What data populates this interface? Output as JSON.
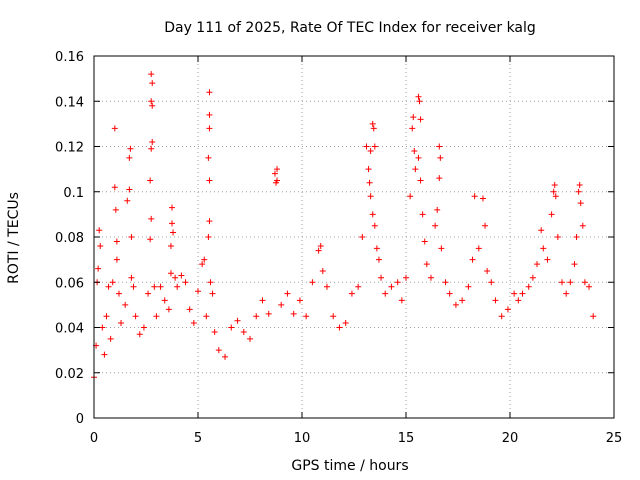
{
  "chart_data": {
    "type": "scatter",
    "title": "Day 111 of 2025, Rate Of TEC Index for receiver kalg",
    "xlabel": "GPS time / hours",
    "ylabel": "ROTI / TECUs",
    "xlim": [
      0,
      25
    ],
    "ylim": [
      0,
      0.16
    ],
    "x_ticks": [
      0,
      5,
      10,
      15,
      20,
      25
    ],
    "x_tick_labels": [
      "0",
      "5",
      "10",
      "15",
      "20",
      "25"
    ],
    "y_ticks": [
      0,
      0.02,
      0.04,
      0.06,
      0.08,
      0.1,
      0.12,
      0.14,
      0.16
    ],
    "y_tick_labels": [
      "0",
      "0.02",
      "0.04",
      "0.06",
      "0.08",
      "0.1",
      "0.12",
      "0.14",
      "0.16"
    ],
    "grid": true,
    "marker": "+",
    "color": "#ff0000",
    "points": [
      [
        0.0,
        0.018
      ],
      [
        0.1,
        0.032
      ],
      [
        0.15,
        0.06
      ],
      [
        0.2,
        0.066
      ],
      [
        0.25,
        0.083
      ],
      [
        0.3,
        0.076
      ],
      [
        0.4,
        0.04
      ],
      [
        0.5,
        0.028
      ],
      [
        0.6,
        0.045
      ],
      [
        0.7,
        0.058
      ],
      [
        0.8,
        0.035
      ],
      [
        0.9,
        0.06
      ],
      [
        1.0,
        0.128
      ],
      [
        1.0,
        0.102
      ],
      [
        1.05,
        0.092
      ],
      [
        1.1,
        0.078
      ],
      [
        1.1,
        0.07
      ],
      [
        1.2,
        0.055
      ],
      [
        1.3,
        0.042
      ],
      [
        1.5,
        0.05
      ],
      [
        1.6,
        0.096
      ],
      [
        1.7,
        0.115
      ],
      [
        1.75,
        0.119
      ],
      [
        1.7,
        0.101
      ],
      [
        1.8,
        0.08
      ],
      [
        1.8,
        0.062
      ],
      [
        1.9,
        0.058
      ],
      [
        2.0,
        0.045
      ],
      [
        2.2,
        0.037
      ],
      [
        2.4,
        0.04
      ],
      [
        2.6,
        0.055
      ],
      [
        2.75,
        0.152
      ],
      [
        2.8,
        0.148
      ],
      [
        2.75,
        0.14
      ],
      [
        2.8,
        0.138
      ],
      [
        2.8,
        0.122
      ],
      [
        2.75,
        0.119
      ],
      [
        2.7,
        0.105
      ],
      [
        2.75,
        0.088
      ],
      [
        2.7,
        0.079
      ],
      [
        2.9,
        0.058
      ],
      [
        3.0,
        0.045
      ],
      [
        3.2,
        0.058
      ],
      [
        3.4,
        0.052
      ],
      [
        3.6,
        0.048
      ],
      [
        3.7,
        0.064
      ],
      [
        3.75,
        0.093
      ],
      [
        3.75,
        0.086
      ],
      [
        3.8,
        0.082
      ],
      [
        3.7,
        0.076
      ],
      [
        3.9,
        0.062
      ],
      [
        4.0,
        0.058
      ],
      [
        4.2,
        0.063
      ],
      [
        4.4,
        0.06
      ],
      [
        4.6,
        0.048
      ],
      [
        4.8,
        0.042
      ],
      [
        5.0,
        0.056
      ],
      [
        5.2,
        0.068
      ],
      [
        5.3,
        0.07
      ],
      [
        5.4,
        0.045
      ],
      [
        5.55,
        0.144
      ],
      [
        5.55,
        0.134
      ],
      [
        5.55,
        0.128
      ],
      [
        5.5,
        0.115
      ],
      [
        5.55,
        0.105
      ],
      [
        5.55,
        0.087
      ],
      [
        5.5,
        0.08
      ],
      [
        5.6,
        0.06
      ],
      [
        5.7,
        0.055
      ],
      [
        5.8,
        0.038
      ],
      [
        6.0,
        0.03
      ],
      [
        6.3,
        0.027
      ],
      [
        6.6,
        0.04
      ],
      [
        6.9,
        0.043
      ],
      [
        7.2,
        0.038
      ],
      [
        7.5,
        0.035
      ],
      [
        7.8,
        0.045
      ],
      [
        8.1,
        0.052
      ],
      [
        8.4,
        0.046
      ],
      [
        8.7,
        0.108
      ],
      [
        8.75,
        0.104
      ],
      [
        8.8,
        0.11
      ],
      [
        8.8,
        0.105
      ],
      [
        9.0,
        0.05
      ],
      [
        9.3,
        0.055
      ],
      [
        9.6,
        0.046
      ],
      [
        9.9,
        0.052
      ],
      [
        10.2,
        0.045
      ],
      [
        10.5,
        0.06
      ],
      [
        10.8,
        0.074
      ],
      [
        10.9,
        0.076
      ],
      [
        11.0,
        0.065
      ],
      [
        11.2,
        0.058
      ],
      [
        11.5,
        0.045
      ],
      [
        11.8,
        0.04
      ],
      [
        12.1,
        0.042
      ],
      [
        12.4,
        0.055
      ],
      [
        12.7,
        0.058
      ],
      [
        12.9,
        0.08
      ],
      [
        13.1,
        0.12
      ],
      [
        13.2,
        0.11
      ],
      [
        13.25,
        0.104
      ],
      [
        13.3,
        0.118
      ],
      [
        13.4,
        0.13
      ],
      [
        13.45,
        0.128
      ],
      [
        13.5,
        0.12
      ],
      [
        13.3,
        0.098
      ],
      [
        13.4,
        0.09
      ],
      [
        13.5,
        0.085
      ],
      [
        13.6,
        0.075
      ],
      [
        13.7,
        0.07
      ],
      [
        13.8,
        0.062
      ],
      [
        14.0,
        0.055
      ],
      [
        14.3,
        0.058
      ],
      [
        14.6,
        0.06
      ],
      [
        14.8,
        0.052
      ],
      [
        15.0,
        0.062
      ],
      [
        15.2,
        0.098
      ],
      [
        15.3,
        0.128
      ],
      [
        15.35,
        0.133
      ],
      [
        15.4,
        0.118
      ],
      [
        15.45,
        0.11
      ],
      [
        15.6,
        0.142
      ],
      [
        15.65,
        0.14
      ],
      [
        15.7,
        0.132
      ],
      [
        15.6,
        0.115
      ],
      [
        15.7,
        0.105
      ],
      [
        15.8,
        0.09
      ],
      [
        15.9,
        0.078
      ],
      [
        16.0,
        0.068
      ],
      [
        16.2,
        0.062
      ],
      [
        16.4,
        0.085
      ],
      [
        16.5,
        0.092
      ],
      [
        16.6,
        0.12
      ],
      [
        16.65,
        0.115
      ],
      [
        16.6,
        0.106
      ],
      [
        16.7,
        0.075
      ],
      [
        16.9,
        0.06
      ],
      [
        17.1,
        0.055
      ],
      [
        17.4,
        0.05
      ],
      [
        17.7,
        0.052
      ],
      [
        18.0,
        0.058
      ],
      [
        18.2,
        0.07
      ],
      [
        18.3,
        0.098
      ],
      [
        18.5,
        0.075
      ],
      [
        18.7,
        0.097
      ],
      [
        18.8,
        0.085
      ],
      [
        18.9,
        0.065
      ],
      [
        19.1,
        0.06
      ],
      [
        19.3,
        0.052
      ],
      [
        19.6,
        0.045
      ],
      [
        19.9,
        0.048
      ],
      [
        20.2,
        0.055
      ],
      [
        20.4,
        0.052
      ],
      [
        20.6,
        0.055
      ],
      [
        20.9,
        0.058
      ],
      [
        21.1,
        0.062
      ],
      [
        21.3,
        0.068
      ],
      [
        21.5,
        0.083
      ],
      [
        21.6,
        0.075
      ],
      [
        21.8,
        0.07
      ],
      [
        22.0,
        0.09
      ],
      [
        22.1,
        0.1
      ],
      [
        22.15,
        0.103
      ],
      [
        22.2,
        0.098
      ],
      [
        22.3,
        0.08
      ],
      [
        22.5,
        0.06
      ],
      [
        22.7,
        0.055
      ],
      [
        22.9,
        0.06
      ],
      [
        23.1,
        0.068
      ],
      [
        23.2,
        0.08
      ],
      [
        23.3,
        0.1
      ],
      [
        23.35,
        0.103
      ],
      [
        23.4,
        0.095
      ],
      [
        23.5,
        0.085
      ],
      [
        23.6,
        0.06
      ],
      [
        23.8,
        0.058
      ],
      [
        24.0,
        0.045
      ]
    ]
  }
}
